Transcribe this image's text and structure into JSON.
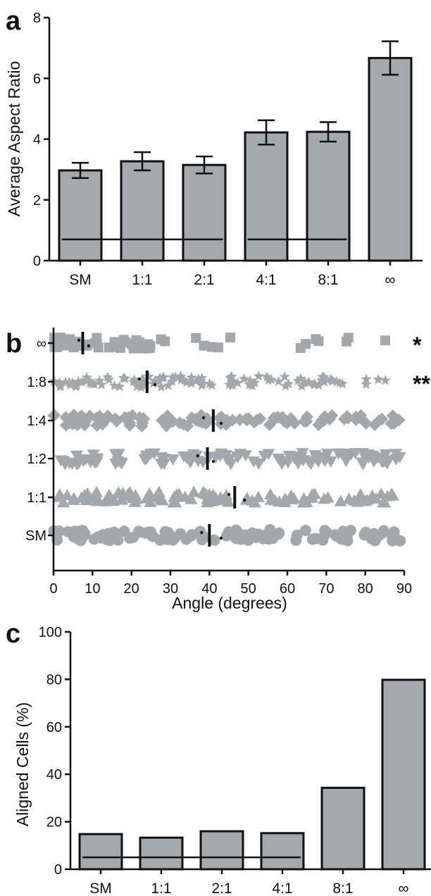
{
  "colors": {
    "bar_fill": "#a6a8ac",
    "marker_fill": "#a5a7ab",
    "stroke": "#111111"
  },
  "chart_data": [
    {
      "panel": "a",
      "type": "bar",
      "ylabel": "Average Aspect Ratio",
      "ylim": [
        0,
        8
      ],
      "yticks": [
        "0",
        "2",
        "4",
        "6",
        "8"
      ],
      "categories": [
        "SM",
        "1:1",
        "2:1",
        "4:1",
        "8:1",
        "∞"
      ],
      "values": [
        2.97,
        3.27,
        3.15,
        4.22,
        4.24,
        6.67
      ],
      "errors": [
        0.25,
        0.3,
        0.28,
        0.4,
        0.32,
        0.55
      ],
      "significance_lines": [
        {
          "from": "SM",
          "to": "2:1",
          "y": 0.7
        },
        {
          "from": "4:1",
          "to": "8:1",
          "y": 0.7
        }
      ]
    },
    {
      "panel": "b",
      "type": "scatter",
      "xlabel": "Angle (degrees)",
      "xlim": [
        0,
        90
      ],
      "xticks": [
        "0",
        "10",
        "20",
        "30",
        "40",
        "50",
        "60",
        "70",
        "80",
        "90"
      ],
      "categories": [
        "∞",
        "1:8",
        "1:4",
        "1:2",
        "1:1",
        "SM"
      ],
      "markers": [
        "square",
        "star",
        "diamond",
        "triangle-down",
        "triangle-up",
        "circle"
      ],
      "medians": [
        7.5,
        24,
        41,
        39.5,
        46.5,
        40
      ],
      "ci": [
        [
          6.5,
          9
        ],
        [
          22,
          26
        ],
        [
          38.5,
          43
        ],
        [
          37,
          41
        ],
        [
          45,
          49
        ],
        [
          38,
          43
        ]
      ],
      "annotations": [
        "*",
        "**",
        "",
        "",
        "",
        ""
      ]
    },
    {
      "panel": "c",
      "type": "bar",
      "ylabel": "Aligned Cells (%)",
      "ylim": [
        0,
        100
      ],
      "yticks": [
        "0",
        "20",
        "40",
        "60",
        "80",
        "100"
      ],
      "categories": [
        "SM",
        "1:1",
        "2:1",
        "4:1",
        "8:1",
        "∞"
      ],
      "values": [
        14.8,
        13.3,
        16,
        15.2,
        34.3,
        79.8
      ],
      "significance_lines": [
        {
          "from": "SM",
          "to": "4:1",
          "y": 5
        }
      ]
    }
  ],
  "panel_labels": [
    "a",
    "b",
    "c"
  ]
}
